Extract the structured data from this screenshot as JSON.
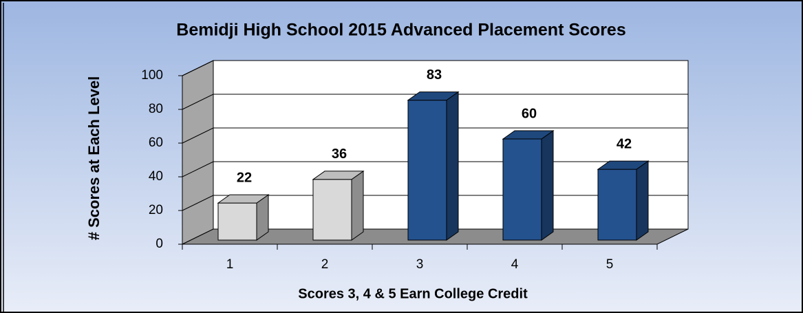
{
  "chart_data": {
    "type": "bar3d",
    "title": "Bemidji High School 2015 Advanced Placement Scores",
    "x_label": "Scores 3, 4 & 5 Earn College Credit",
    "y_label": "# Scores at Each Level",
    "categories": [
      "1",
      "2",
      "3",
      "4",
      "5"
    ],
    "values": [
      22,
      36,
      83,
      60,
      42
    ],
    "colors": [
      "#d9d9d9",
      "#d9d9d9",
      "#24528f",
      "#24528f",
      "#24528f"
    ],
    "ylim": [
      0,
      100
    ],
    "yticks": [
      0,
      20,
      40,
      60,
      80,
      100
    ],
    "grid": true
  }
}
